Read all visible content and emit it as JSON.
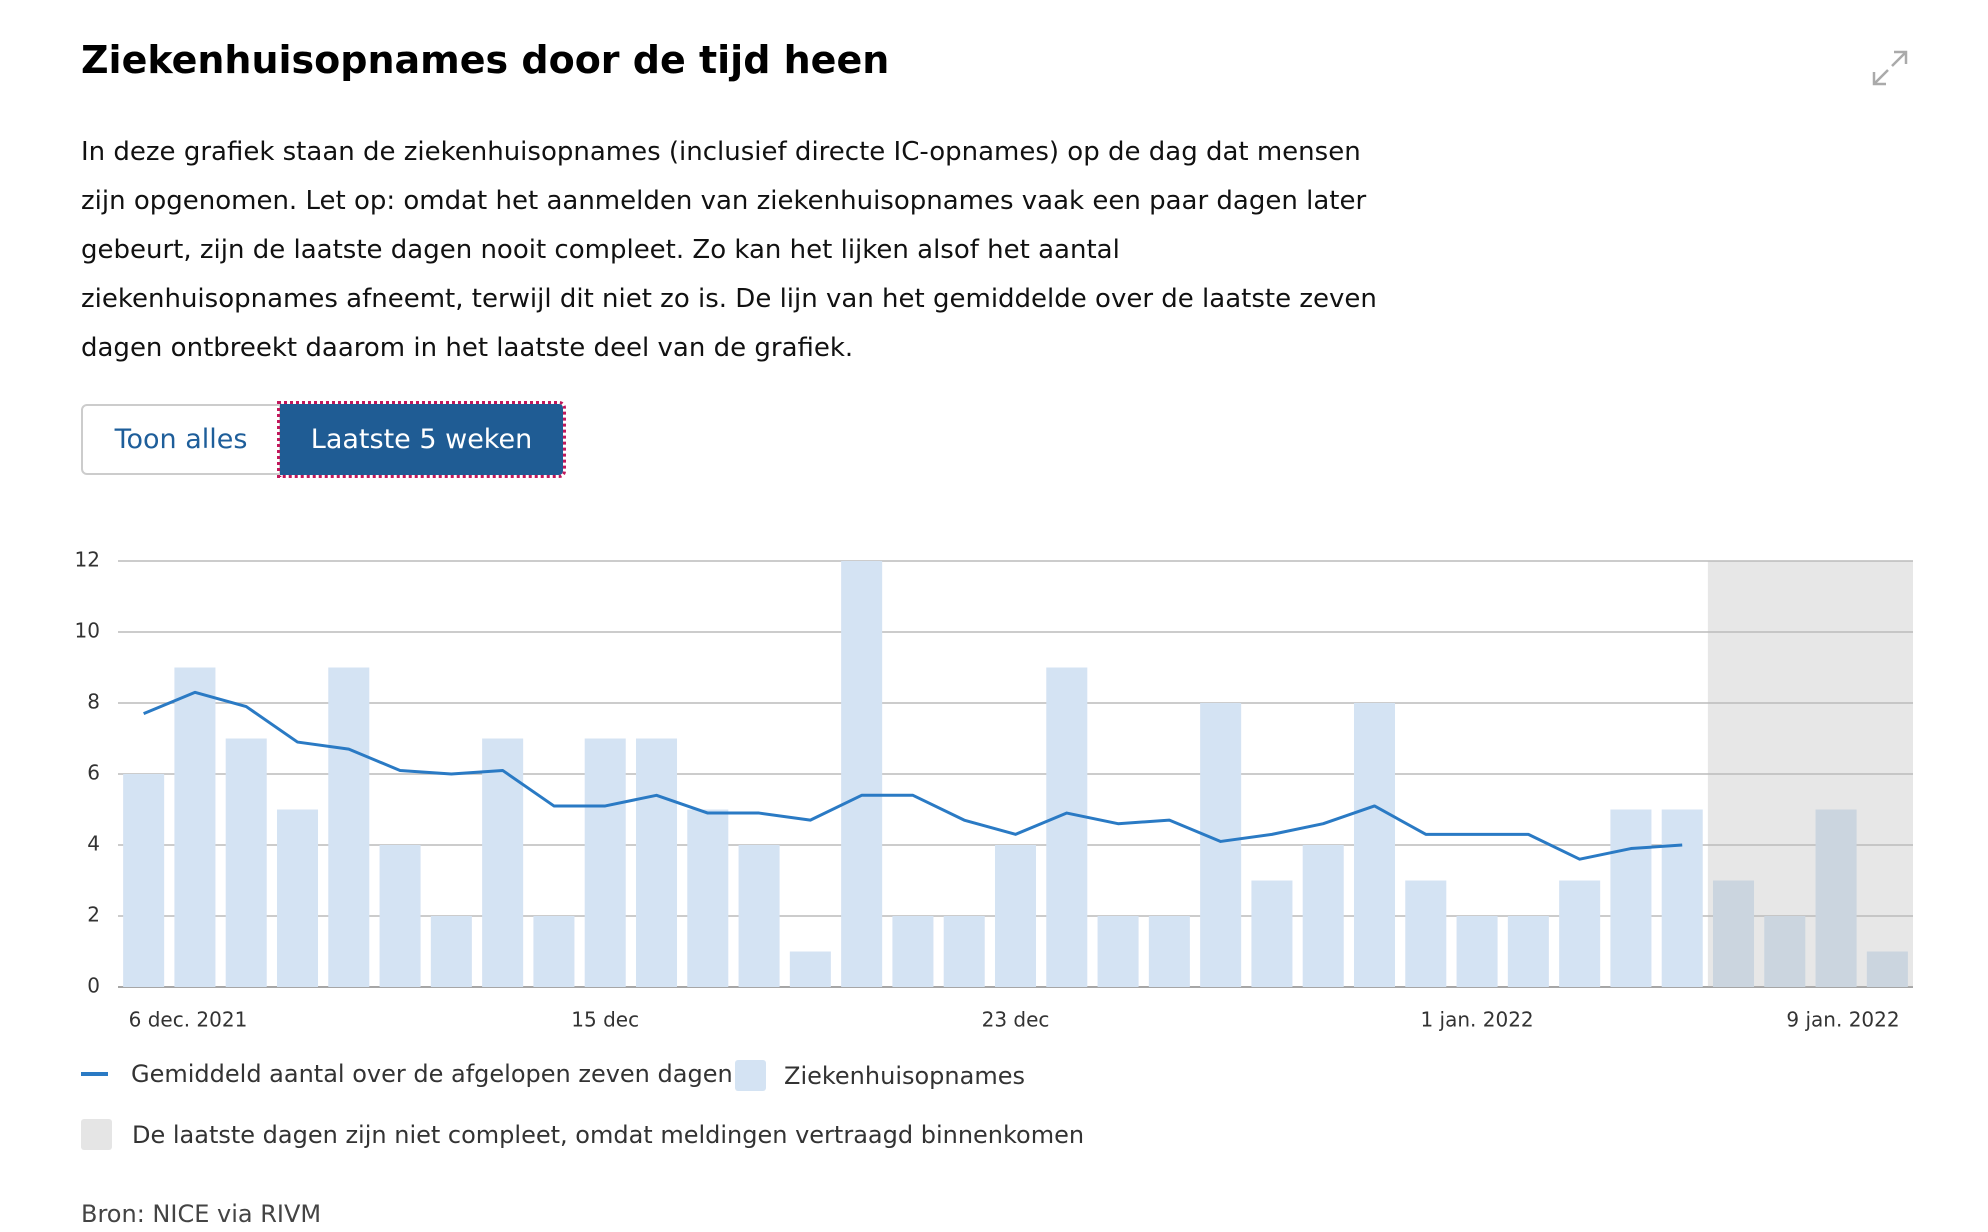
{
  "header": {
    "title": "Ziekenhuisopnames door de tijd heen",
    "description": "In deze grafiek staan de ziekenhuisopnames (inclusief directe IC-opnames) op de dag dat mensen zijn opgenomen. Let op: omdat het aanmelden van ziekenhuisopnames vaak een paar dagen later gebeurt, zijn de laatste dagen nooit compleet. Zo kan het lijken alsof het aantal ziekenhuisopnames afneemt, terwijl dit niet zo is. De lijn van het gemiddelde over de laatste zeven dagen ontbreekt daarom in het laatste deel van de grafiek."
  },
  "buttons": [
    "Toon alles",
    "Laatste 5 weken"
  ],
  "chart_data": {
    "type": "bar",
    "ylim": [
      0,
      12
    ],
    "yticks": [
      0,
      2,
      4,
      6,
      8,
      10,
      12
    ],
    "grid": true,
    "categories": [
      "6 dec. 2021",
      null,
      null,
      null,
      null,
      null,
      null,
      null,
      null,
      "15 dec",
      null,
      null,
      null,
      null,
      null,
      null,
      null,
      "23 dec",
      null,
      null,
      null,
      null,
      null,
      null,
      null,
      null,
      "1 jan. 2022",
      null,
      null,
      null,
      null,
      null,
      null,
      null,
      "9 jan. 2022"
    ],
    "series": [
      {
        "name": "Ziekenhuisopnames",
        "type": "bar",
        "color": "#d4e3f3",
        "values": [
          6,
          9,
          7,
          5,
          9,
          4,
          2,
          7,
          2,
          7,
          7,
          5,
          4,
          1,
          12,
          2,
          2,
          4,
          9,
          2,
          2,
          8,
          3,
          4,
          8,
          3,
          2,
          2,
          3,
          5,
          5,
          3,
          2,
          5,
          1
        ]
      },
      {
        "name": "Gemiddeld aantal over de afgelopen zeven dagen",
        "type": "line",
        "color": "#2a7ac4",
        "values": [
          7.7,
          8.3,
          7.9,
          6.9,
          6.7,
          6.1,
          6.0,
          6.1,
          5.1,
          5.1,
          5.4,
          4.9,
          4.9,
          4.7,
          5.4,
          5.4,
          4.7,
          4.3,
          4.9,
          4.6,
          4.7,
          4.1,
          4.3,
          4.6,
          5.1,
          4.3,
          4.3,
          4.3,
          3.6,
          3.9,
          4.0,
          null,
          null,
          null,
          null
        ]
      }
    ],
    "incomplete_note": "De laatste dagen zijn niet compleet, omdat meldingen vertraagd binnenkomen"
  },
  "source": "Bron: NICE via RIVM"
}
